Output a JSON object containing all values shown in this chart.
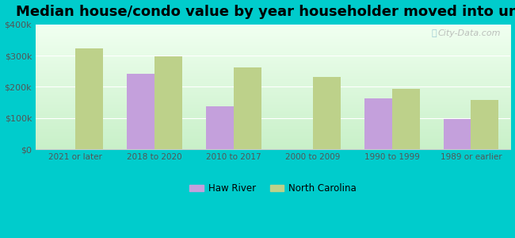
{
  "title": "Median house/condo value by year householder moved into unit",
  "categories": [
    "2021 or later",
    "2018 to 2020",
    "2010 to 2017",
    "2000 to 2009",
    "1990 to 1999",
    "1989 or earlier"
  ],
  "haw_river": [
    null,
    242000,
    138000,
    null,
    163000,
    98000
  ],
  "north_carolina": [
    322000,
    298000,
    263000,
    232000,
    193000,
    158000
  ],
  "haw_river_color": "#c4a0dc",
  "north_carolina_color": "#bdd18a",
  "bg_top_color": "#f0fff0",
  "bg_bottom_color": "#c8f0c8",
  "outer_background": "#00cccc",
  "ylim": [
    0,
    400000
  ],
  "yticks": [
    0,
    100000,
    200000,
    300000,
    400000
  ],
  "ytick_labels": [
    "$0",
    "$100k",
    "$200k",
    "$300k",
    "$400k"
  ],
  "legend_haw_river": "Haw River",
  "legend_north_carolina": "North Carolina",
  "watermark": "City-Data.com",
  "bar_width": 0.35,
  "title_fontsize": 13
}
